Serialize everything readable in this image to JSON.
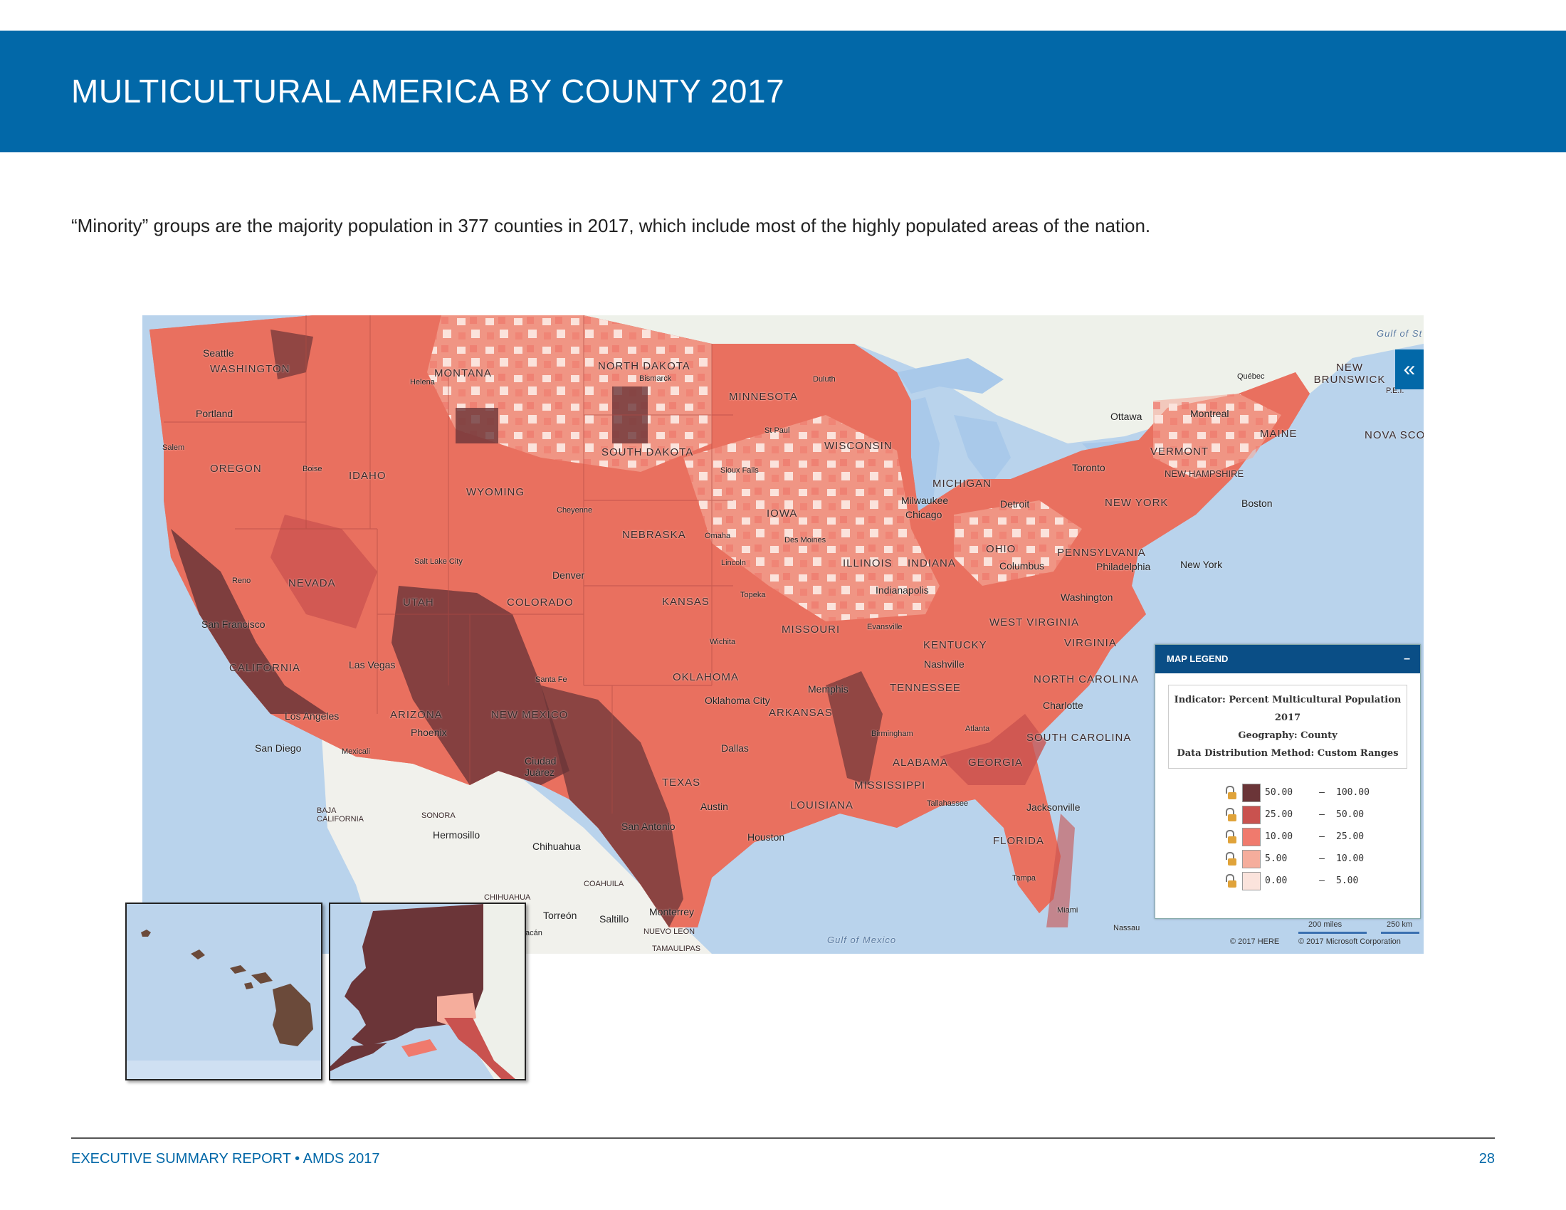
{
  "header": {
    "title": "MULTICULTURAL AMERICA BY COUNTY 2017"
  },
  "intro": "“Minority” groups are the majority population in 377 counties in 2017, which include most of the highly populated areas of the nation.",
  "map": {
    "collapse_icon": "«",
    "state_labels": {
      "washington": "WASHINGTON",
      "oregon": "OREGON",
      "california": "CALIFORNIA",
      "nevada": "NEVADA",
      "idaho": "IDAHO",
      "montana": "MONTANA",
      "wyoming": "WYOMING",
      "utah": "UTAH",
      "colorado": "COLORADO",
      "arizona": "ARIZONA",
      "new_mexico": "NEW MEXICO",
      "north_dakota": "NORTH DAKOTA",
      "south_dakota": "SOUTH DAKOTA",
      "nebraska": "NEBRASKA",
      "kansas": "KANSAS",
      "oklahoma": "OKLAHOMA",
      "texas": "TEXAS",
      "minnesota": "MINNESOTA",
      "iowa": "IOWA",
      "missouri": "MISSOURI",
      "arkansas": "ARKANSAS",
      "louisiana": "LOUISIANA",
      "wisconsin": "WISCONSIN",
      "illinois": "ILLINOIS",
      "michigan": "MICHIGAN",
      "indiana": "INDIANA",
      "ohio": "OHIO",
      "kentucky": "KENTUCKY",
      "tennessee": "TENNESSEE",
      "mississippi": "MISSISSIPPI",
      "alabama": "ALABAMA",
      "georgia": "GEORGIA",
      "florida": "FLORIDA",
      "south_carolina": "SOUTH CAROLINA",
      "north_carolina": "NORTH CAROLINA",
      "virginia": "VIRGINIA",
      "west_virginia": "WEST VIRGINIA",
      "pennsylvania": "PENNSYLVANIA",
      "new_york": "NEW YORK",
      "vermont": "VERMONT",
      "new_hampshire": "NEW HAMPSHIRE",
      "maine": "MAINE",
      "new_brunswick": "NEW BRUNSWICK",
      "nova_scotia": "NOVA SCO",
      "baja": "BAJA CALIFORNIA",
      "sonora": "SONORA",
      "chihuahua_st": "CHIHUAHUA",
      "coahuila": "COAHUILA",
      "nuevo_leon": "NUEVO LEON",
      "tamaulipas": "TAMAULIPAS",
      "pei": "P.E.I."
    },
    "city_labels": {
      "seattle": "Seattle",
      "portland": "Portland",
      "salem": "Salem",
      "boise": "Boise",
      "helena": "Helena",
      "bismarck": "Bismarck",
      "reno": "Reno",
      "san_francisco": "San Francisco",
      "las_vegas": "Las Vegas",
      "los_angeles": "Los Angeles",
      "san_diego": "San Diego",
      "mexicali": "Mexicali",
      "phoenix": "Phoenix",
      "salt_lake": "Salt Lake City",
      "cheyenne": "Cheyenne",
      "denver": "Denver",
      "santa_fe": "Santa Fe",
      "ciudad_juarez": "Ciudad Juárez",
      "hermosillo": "Hermosillo",
      "chihuahua": "Chihuahua",
      "torreon": "Torreón",
      "saltillo": "Saltillo",
      "monterrey": "Monterrey",
      "san_antonio": "San Antonio",
      "austin": "Austin",
      "houston": "Houston",
      "dallas": "Dallas",
      "oklahoma_city": "Oklahoma City",
      "wichita": "Wichita",
      "topeka": "Topeka",
      "lincoln": "Lincoln",
      "omaha": "Omaha",
      "des_moines": "Des Moines",
      "sioux_falls": "Sioux Falls",
      "st_paul": "St Paul",
      "duluth": "Duluth",
      "milwaukee": "Milwaukee",
      "chicago": "Chicago",
      "detroit": "Detroit",
      "indianapolis": "Indianapolis",
      "evansville": "Evansville",
      "nashville": "Nashville",
      "memphis": "Memphis",
      "birmingham": "Birmingham",
      "atlanta": "Atlanta",
      "tallahassee": "Tallahassee",
      "jacksonville": "Jacksonville",
      "tampa": "Tampa",
      "miami": "Miami",
      "nassau": "Nassau",
      "charlotte": "Charlotte",
      "columbus": "Columbus",
      "washington_dc": "Washington",
      "philadelphia": "Philadelphia",
      "new_york_city": "New York",
      "boston": "Boston",
      "toronto": "Toronto",
      "ottawa": "Ottawa",
      "montreal": "Montreal",
      "quebec": "Québec",
      "acan": "acán"
    },
    "water_labels": {
      "gulf_mexico": "Gulf of Mexico",
      "gulf_st": "Gulf of St"
    },
    "legend": {
      "header": "MAP LEGEND",
      "minimize": "–",
      "indicator": "Indicator: Percent Multicultural Population",
      "year": "2017",
      "geography": "Geography: County",
      "method": "Data Distribution Method: Custom Ranges",
      "ranges": [
        {
          "low": "50.00",
          "high": "100.00",
          "color": "#6b3538"
        },
        {
          "low": "25.00",
          "high": "50.00",
          "color": "#c9524f"
        },
        {
          "low": "10.00",
          "high": "25.00",
          "color": "#f07a6d"
        },
        {
          "low": "5.00",
          "high": "10.00",
          "color": "#f5ad9c"
        },
        {
          "low": "0.00",
          "high": "5.00",
          "color": "#fbe3dc"
        }
      ]
    },
    "scale": {
      "miles": "200 miles",
      "km": "250 km"
    },
    "credits": {
      "here": "© 2017 HERE",
      "microsoft": "© 2017 Microsoft Corporation"
    }
  },
  "footer": {
    "left": "EXECUTIVE SUMMARY REPORT  •  AMDS 2017",
    "page": "28"
  }
}
